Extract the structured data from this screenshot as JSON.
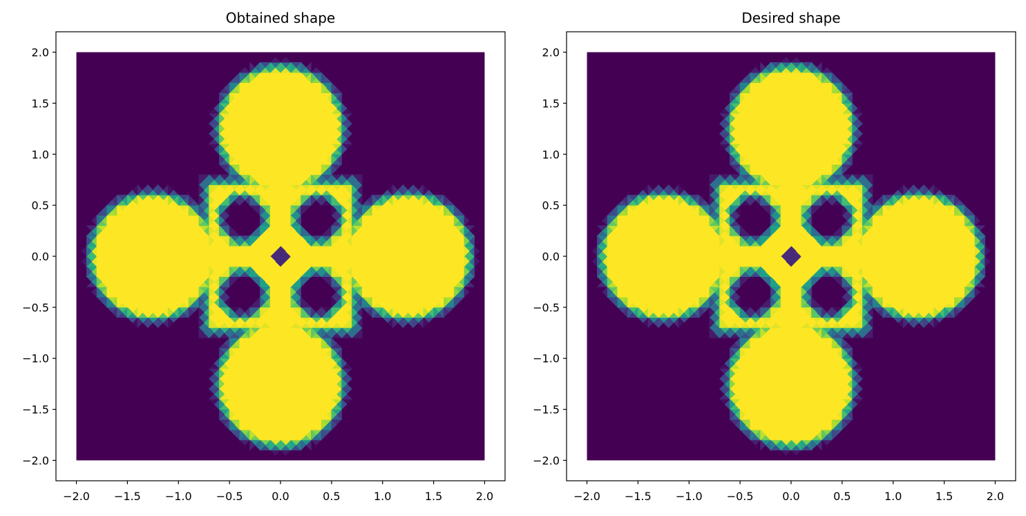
{
  "chart_data": [
    {
      "type": "heatmap",
      "title": "Obtained shape",
      "xlabel": "",
      "ylabel": "",
      "xlim": [
        -2.2,
        2.2
      ],
      "ylim": [
        -2.2,
        2.2
      ],
      "domain": [
        -2.0,
        2.0
      ],
      "xticks": [
        -2.0,
        -1.5,
        -1.0,
        -0.5,
        0.0,
        0.5,
        1.0,
        1.5,
        2.0
      ],
      "xtick_labels": [
        "−2.0",
        "−1.5",
        "−1.0",
        "−0.5",
        "0.0",
        "0.5",
        "1.0",
        "1.5",
        "2.0"
      ],
      "yticks": [
        2.0,
        1.5,
        1.0,
        0.5,
        0.0,
        -0.5,
        -1.0,
        -1.5,
        -2.0
      ],
      "ytick_labels": [
        "2.0",
        "1.5",
        "1.0",
        "0.5",
        "0.0",
        "−0.5",
        "−1.0",
        "−1.5",
        "−2.0"
      ],
      "colormap": "viridis",
      "value_range": [
        0,
        1
      ],
      "shape": {
        "lobe_centers": [
          [
            0.0,
            1.25
          ],
          [
            0.0,
            -1.25
          ],
          [
            1.25,
            0.0
          ],
          [
            -1.25,
            0.0
          ]
        ],
        "lobe_radius": 0.62,
        "cross_half_width": 0.13,
        "cross_half_length": 1.0,
        "ring_center": [
          0.0,
          0.0
        ],
        "ring_outer_radius": 0.72,
        "hole_centers": [
          [
            0.37,
            0.37
          ],
          [
            -0.37,
            0.37
          ],
          [
            0.37,
            -0.37
          ],
          [
            -0.37,
            -0.37
          ]
        ],
        "hole_half_size": 0.22,
        "center_diamond_radius": 0.12,
        "center_diamond_value": 0.12
      }
    },
    {
      "type": "heatmap",
      "title": "Desired shape",
      "xlabel": "",
      "ylabel": "",
      "xlim": [
        -2.2,
        2.2
      ],
      "ylim": [
        -2.2,
        2.2
      ],
      "domain": [
        -2.0,
        2.0
      ],
      "xticks": [
        -2.0,
        -1.5,
        -1.0,
        -0.5,
        0.0,
        0.5,
        1.0,
        1.5,
        2.0
      ],
      "xtick_labels": [
        "−2.0",
        "−1.5",
        "−1.0",
        "−0.5",
        "0.0",
        "0.5",
        "1.0",
        "1.5",
        "2.0"
      ],
      "yticks": [
        2.0,
        1.5,
        1.0,
        0.5,
        0.0,
        -0.5,
        -1.0,
        -1.5,
        -2.0
      ],
      "ytick_labels": [
        "2.0",
        "1.5",
        "1.0",
        "0.5",
        "0.0",
        "−0.5",
        "−1.0",
        "−1.5",
        "−2.0"
      ],
      "colormap": "viridis",
      "value_range": [
        0,
        1
      ],
      "shape": {
        "lobe_centers": [
          [
            0.0,
            1.25
          ],
          [
            0.0,
            -1.25
          ],
          [
            1.25,
            0.0
          ],
          [
            -1.25,
            0.0
          ]
        ],
        "lobe_radius": 0.62,
        "cross_half_width": 0.13,
        "cross_half_length": 1.0,
        "ring_center": [
          0.0,
          0.0
        ],
        "ring_outer_radius": 0.72,
        "hole_centers": [
          [
            0.37,
            0.37
          ],
          [
            -0.37,
            0.37
          ],
          [
            0.37,
            -0.37
          ],
          [
            -0.37,
            -0.37
          ]
        ],
        "hole_half_size": 0.22,
        "center_diamond_radius": 0.12,
        "center_diamond_value": 0.12
      }
    }
  ],
  "colors": {
    "background_low": "#440154",
    "high": "#fde725",
    "frame": "#000000"
  }
}
